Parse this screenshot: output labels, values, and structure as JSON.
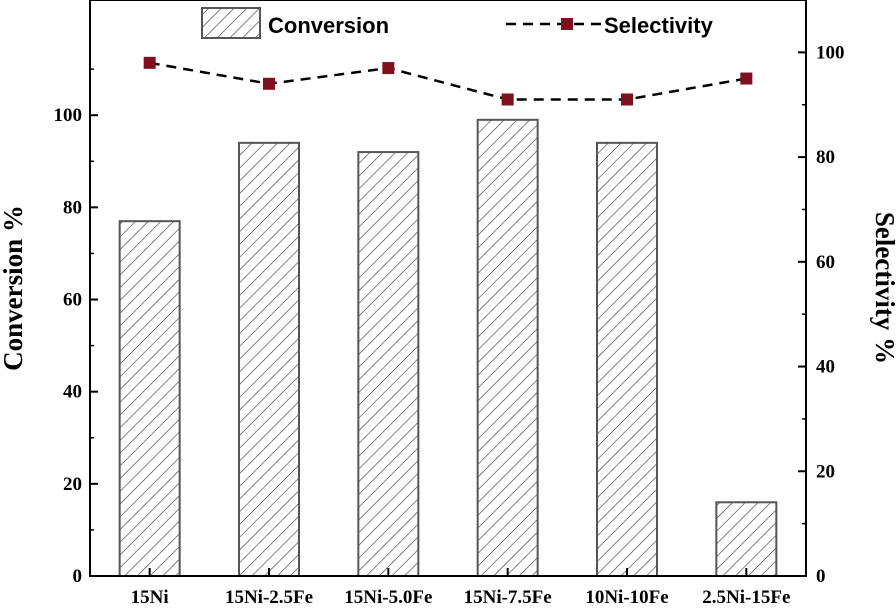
{
  "chart_data": {
    "type": "bar",
    "categories": [
      "15Ni",
      "15Ni-2.5Fe",
      "15Ni-5.0Fe",
      "15Ni-7.5Fe",
      "10Ni-10Fe",
      "2.5Ni-15Fe"
    ],
    "series": [
      {
        "name": "Conversion",
        "type": "bar",
        "axis": "left",
        "values": [
          77,
          94,
          92,
          99,
          94,
          16
        ]
      },
      {
        "name": "Selectivity",
        "type": "line",
        "axis": "right",
        "values": [
          98,
          94,
          97,
          91,
          91,
          95
        ]
      }
    ],
    "ylabel": "Conversion %",
    "y2label": "Selectivity %",
    "ylim": [
      0,
      125
    ],
    "y2lim": [
      0,
      110
    ],
    "yticks": [
      0,
      20,
      40,
      60,
      80,
      100
    ],
    "y2ticks": [
      0,
      20,
      40,
      60,
      80,
      100
    ],
    "grid": false,
    "legend_position": "top",
    "colors": {
      "bar_edge": "#555555",
      "bar_hatch": "#333333",
      "marker": "#7f1020",
      "line": "#000000",
      "axis": "#000000"
    }
  }
}
